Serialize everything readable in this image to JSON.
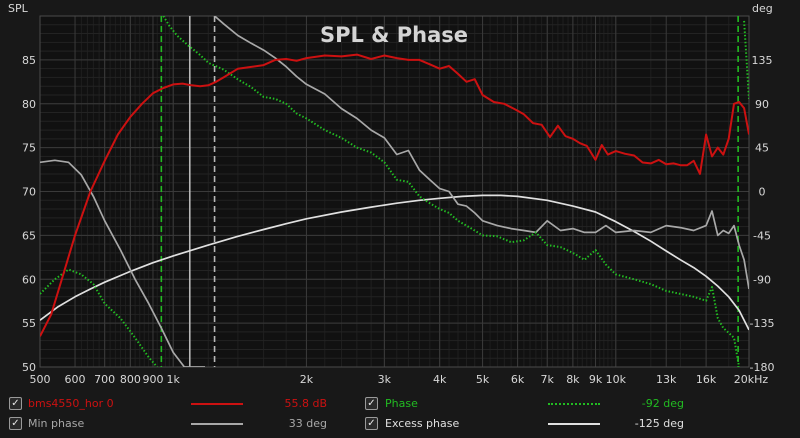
{
  "chart_data": {
    "type": "line",
    "title": "SPL & Phase",
    "ylabel": "SPL",
    "y2label": "deg",
    "xunit": "Hz",
    "xscale": "log",
    "xlim": [
      500,
      20000
    ],
    "ylim": [
      50,
      90
    ],
    "y2lim": [
      -180,
      180
    ],
    "xticks": [
      500,
      600,
      700,
      800,
      900,
      1000,
      2000,
      3000,
      4000,
      5000,
      6000,
      7000,
      8000,
      9000,
      10000,
      13000,
      16000,
      20000
    ],
    "xtick_labels": [
      "500",
      "600",
      "700",
      "800",
      "900",
      "1k",
      "2k",
      "3k",
      "4k",
      "5k",
      "6k",
      "7k",
      "8k",
      "9k",
      "10k",
      "13k",
      "16k",
      "20kHz"
    ],
    "yticks": [
      50,
      55,
      60,
      65,
      70,
      75,
      80,
      85
    ],
    "yticks_right": [
      -180,
      -135,
      -90,
      -45,
      0,
      45,
      90,
      135
    ],
    "markers": [
      {
        "x": 940,
        "style": "dashed",
        "color": "#22bb22"
      },
      {
        "x": 18900,
        "style": "dashed",
        "color": "#22bb22"
      },
      {
        "x": 1090,
        "style": "solid",
        "color": "#b8b8b8"
      },
      {
        "x": 1240,
        "style": "dashed",
        "color": "#b8b8b8"
      }
    ],
    "series": [
      {
        "name": "bms4550_hor 0",
        "axis": "left",
        "color": "#cc1111",
        "style": "solid",
        "x": [
          500,
          530,
          560,
          600,
          650,
          700,
          750,
          800,
          850,
          900,
          950,
          1000,
          1050,
          1100,
          1150,
          1200,
          1250,
          1300,
          1400,
          1500,
          1600,
          1700,
          1800,
          1900,
          2000,
          2200,
          2400,
          2600,
          2800,
          3000,
          3200,
          3400,
          3600,
          3800,
          4000,
          4200,
          4400,
          4600,
          4800,
          5000,
          5300,
          5600,
          5900,
          6200,
          6500,
          6800,
          7100,
          7400,
          7700,
          8000,
          8300,
          8600,
          9000,
          9300,
          9600,
          10000,
          10500,
          11000,
          11500,
          12000,
          12500,
          13000,
          13500,
          14000,
          14500,
          15000,
          15500,
          16000,
          16500,
          17000,
          17500,
          18000,
          18500,
          19000,
          19500,
          20000
        ],
        "values": [
          53.5,
          56,
          60,
          65,
          70,
          73.5,
          76.5,
          78.5,
          80,
          81.2,
          81.8,
          82.2,
          82.3,
          82.1,
          82.0,
          82.1,
          82.5,
          83.0,
          84.0,
          84.2,
          84.4,
          85.0,
          85.1,
          84.9,
          85.2,
          85.5,
          85.4,
          85.6,
          85.1,
          85.5,
          85.2,
          85.0,
          85.0,
          84.5,
          84.0,
          84.3,
          83.4,
          82.5,
          82.8,
          81.0,
          80.2,
          80.0,
          79.4,
          78.8,
          77.8,
          77.6,
          76.2,
          77.5,
          76.3,
          76.0,
          75.5,
          75.2,
          73.6,
          75.3,
          74.2,
          74.6,
          74.3,
          74.1,
          73.3,
          73.2,
          73.6,
          73.1,
          73.2,
          73.0,
          73.0,
          73.5,
          72.0,
          76.5,
          74.0,
          75.0,
          74.2,
          76.0,
          80.0,
          80.2,
          79.5,
          76.5
        ]
      },
      {
        "name": "Min phase",
        "axis": "right",
        "color": "#a8a8a8",
        "style": "solid",
        "x": [
          500,
          540,
          580,
          620,
          660,
          700,
          760,
          820,
          880,
          940,
          1000,
          1060,
          1120,
          1180,
          1240,
          1300,
          1400,
          1500,
          1600,
          1700,
          1800,
          1900,
          2000,
          2200,
          2400,
          2600,
          2800,
          3000,
          3200,
          3400,
          3600,
          3800,
          4000,
          4200,
          4400,
          4600,
          4800,
          5000,
          5400,
          5800,
          6200,
          6600,
          7000,
          7500,
          8000,
          8500,
          9000,
          9500,
          10000,
          11000,
          12000,
          13000,
          14000,
          15000,
          16000,
          16500,
          17000,
          17500,
          18000,
          18500,
          19000,
          19500,
          20000
        ],
        "values": [
          30,
          32,
          30,
          17,
          -5,
          -30,
          -60,
          -90,
          -115,
          -140,
          -165,
          -180,
          -180,
          -180,
          180,
          172,
          160,
          152,
          145,
          137,
          128,
          118,
          110,
          100,
          85,
          75,
          63,
          55,
          38,
          42,
          22,
          12,
          3,
          0,
          -13,
          -15,
          -22,
          -30,
          -35,
          -38,
          -40,
          -42,
          -30,
          -40,
          -38,
          -42,
          -42,
          -35,
          -42,
          -40,
          -42,
          -35,
          -37,
          -40,
          -35,
          -20,
          -45,
          -40,
          -43,
          -35,
          -55,
          -70,
          -100
        ]
      },
      {
        "name": "Phase",
        "axis": "right",
        "color": "#22bb22",
        "style": "dotted",
        "x": [
          500,
          540,
          580,
          620,
          660,
          700,
          760,
          820,
          880,
          920,
          950,
          980,
          1020,
          1080,
          1150,
          1200,
          1300,
          1400,
          1500,
          1600,
          1700,
          1800,
          1900,
          2000,
          2200,
          2400,
          2600,
          2800,
          3000,
          3200,
          3400,
          3600,
          3800,
          4000,
          4200,
          4400,
          4600,
          4800,
          5000,
          5400,
          5800,
          6200,
          6600,
          7000,
          7500,
          8000,
          8500,
          9000,
          9500,
          10000,
          11000,
          12000,
          13000,
          14000,
          15000,
          16000,
          16500,
          17000,
          17500,
          18000,
          18500,
          19000,
          19500,
          20000
        ],
        "values": [
          -105,
          -90,
          -80,
          -85,
          -95,
          -115,
          -130,
          -150,
          -170,
          -180,
          180,
          170,
          160,
          150,
          140,
          132,
          125,
          115,
          107,
          97,
          95,
          90,
          80,
          75,
          63,
          55,
          45,
          40,
          30,
          12,
          10,
          -5,
          -12,
          -18,
          -22,
          -30,
          -35,
          -40,
          -45,
          -46,
          -52,
          -50,
          -42,
          -55,
          -57,
          -63,
          -70,
          -60,
          -75,
          -85,
          -90,
          -95,
          -102,
          -105,
          -108,
          -112,
          -98,
          -130,
          -140,
          -145,
          -150,
          -180,
          175,
          95
        ]
      },
      {
        "name": "Excess phase",
        "axis": "right",
        "color": "#e0e0e0",
        "style": "solid",
        "x": [
          500,
          550,
          600,
          650,
          700,
          800,
          900,
          1000,
          1200,
          1400,
          1600,
          1800,
          2000,
          2400,
          2800,
          3200,
          3600,
          4000,
          4500,
          5000,
          5500,
          6000,
          7000,
          8000,
          9000,
          10000,
          11000,
          12000,
          13000,
          14000,
          15000,
          16000,
          17000,
          18000,
          19000,
          20000
        ],
        "values": [
          -132,
          -118,
          -108,
          -100,
          -93,
          -82,
          -73,
          -66,
          -55,
          -46,
          -39,
          -33,
          -28,
          -21,
          -16,
          -12,
          -9,
          -7,
          -5,
          -4,
          -4,
          -5,
          -9,
          -15,
          -21,
          -31,
          -41,
          -51,
          -61,
          -70,
          -78,
          -87,
          -97,
          -108,
          -122,
          -142
        ]
      }
    ]
  },
  "legend": [
    {
      "name": "bms4550_hor 0",
      "value": "55.8 dB",
      "color": "#cc1111",
      "checked": "✓",
      "style": "solid"
    },
    {
      "name": "Min phase",
      "value": "33 deg",
      "color": "#a8a8a8",
      "checked": "✓",
      "style": "solid"
    },
    {
      "name": "Phase",
      "value": "-92 deg",
      "color": "#22bb22",
      "checked": "✓",
      "style": "dotted"
    },
    {
      "name": "Excess phase",
      "value": "-125 deg",
      "color": "#e0e0e0",
      "checked": "✓",
      "style": "solid"
    }
  ]
}
